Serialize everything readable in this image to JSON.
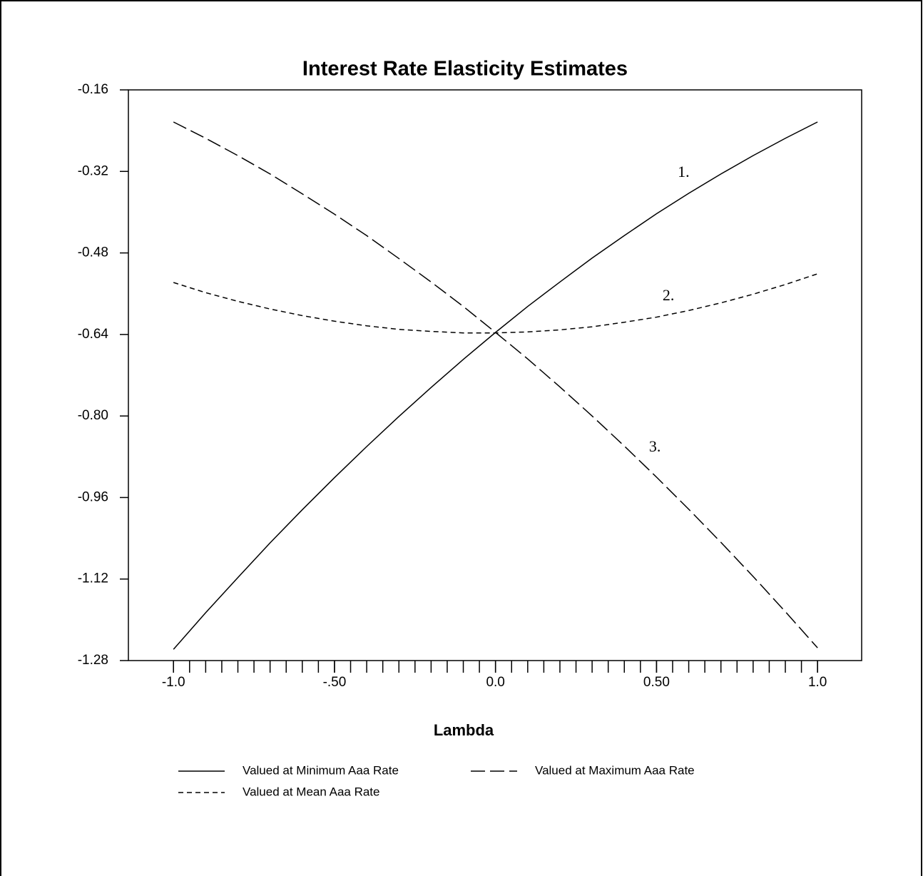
{
  "chart_data": {
    "type": "line",
    "title": "Interest Rate Elasticity Estimates",
    "x_label": "Lambda",
    "x": [
      -1.0,
      -0.9,
      -0.8,
      -0.7,
      -0.6,
      -0.5,
      -0.4,
      -0.3,
      -0.2,
      -0.1,
      0.0,
      0.1,
      0.2,
      0.3,
      0.4,
      0.5,
      0.6,
      0.7,
      0.8,
      0.9,
      1.0
    ],
    "series": [
      {
        "name": "Valued at Minimum Aaa Rate",
        "color": "#000000",
        "line_style": "solid",
        "values": [
          -1.258,
          -1.186,
          -1.117,
          -1.049,
          -0.984,
          -0.921,
          -0.86,
          -0.801,
          -0.744,
          -0.689,
          -0.636,
          -0.585,
          -0.537,
          -0.49,
          -0.446,
          -0.403,
          -0.363,
          -0.325,
          -0.289,
          -0.255,
          -0.223
        ]
      },
      {
        "name": "Valued at Maximum Aaa Rate",
        "color": "#000000",
        "line_style": "long-dash",
        "values": [
          -0.223,
          -0.255,
          -0.289,
          -0.325,
          -0.364,
          -0.404,
          -0.446,
          -0.491,
          -0.537,
          -0.585,
          -0.636,
          -0.688,
          -0.743,
          -0.8,
          -0.859,
          -0.92,
          -0.983,
          -1.048,
          -1.115,
          -1.184,
          -1.255
        ]
      },
      {
        "name": "Valued at Mean Aaa Rate",
        "color": "#000000",
        "line_style": "short-dash",
        "values": [
          -0.538,
          -0.558,
          -0.575,
          -0.59,
          -0.603,
          -0.614,
          -0.623,
          -0.63,
          -0.634,
          -0.637,
          -0.637,
          -0.635,
          -0.631,
          -0.625,
          -0.616,
          -0.606,
          -0.593,
          -0.578,
          -0.561,
          -0.542,
          -0.521
        ]
      }
    ],
    "annotations": [
      {
        "text": "1.",
        "x": 0.584,
        "y": -0.324
      },
      {
        "text": "2.",
        "x": 0.537,
        "y": -0.566
      },
      {
        "text": "3.",
        "x": 0.495,
        "y": -0.863
      }
    ],
    "xlim": [
      -1.14,
      1.137
    ],
    "ylim": [
      -1.28,
      -0.16
    ],
    "xticks": [
      {
        "value": -1.0,
        "label": "-1.0"
      },
      {
        "value": -0.5,
        "label": "-.50"
      },
      {
        "value": 0.0,
        "label": "0.0"
      },
      {
        "value": 0.5,
        "label": "0.50"
      },
      {
        "value": 1.0,
        "label": "1.0"
      }
    ],
    "xminorticks": [
      -1.0,
      -0.95,
      -0.9,
      -0.85,
      -0.8,
      -0.75,
      -0.7,
      -0.65,
      -0.6,
      -0.55,
      -0.5,
      -0.45,
      -0.4,
      -0.35,
      -0.3,
      -0.25,
      -0.2,
      -0.15,
      -0.1,
      -0.05,
      0.0,
      0.05,
      0.1,
      0.15,
      0.2,
      0.25,
      0.3,
      0.35,
      0.4,
      0.45,
      0.5,
      0.55,
      0.6,
      0.65,
      0.7,
      0.75,
      0.8,
      0.85,
      0.9,
      0.95,
      1.0
    ],
    "yticks": [
      -0.16,
      -0.32,
      -0.48,
      -0.64,
      -0.8,
      -0.96,
      -1.12,
      -1.28
    ],
    "ytick_labels": [
      "-0.16",
      "-0.32",
      "-0.48",
      "-0.64",
      "-0.80",
      "-0.96",
      "-1.12",
      "-1.28"
    ],
    "grid": false
  }
}
